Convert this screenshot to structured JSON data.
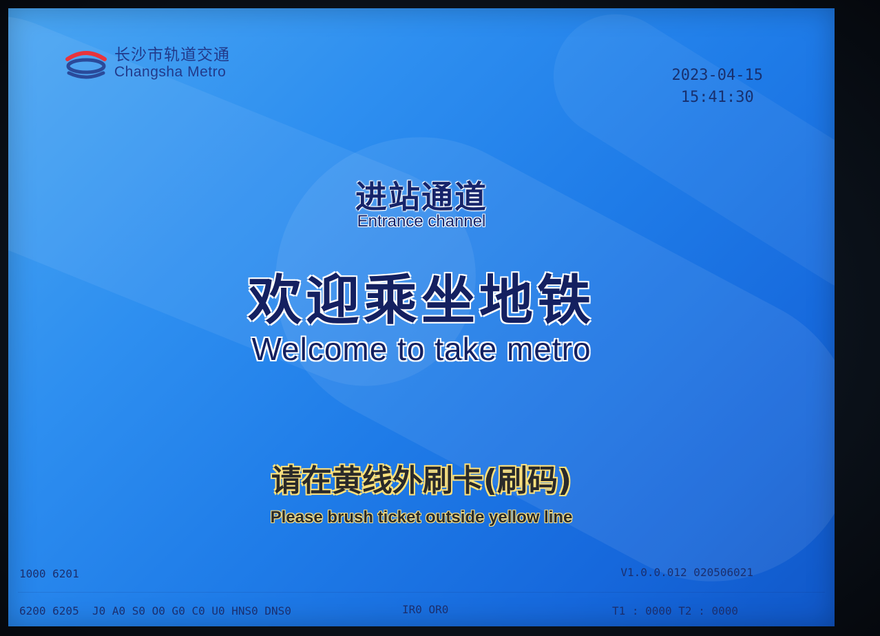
{
  "brand": {
    "name_cn": "长沙市轨道交通",
    "name_en": "Changsha Metro",
    "logo_icon": "changsha-metro-logo-icon"
  },
  "datetime": {
    "date": "2023-04-15",
    "time": "15:41:30"
  },
  "channel": {
    "title_cn": "进站通道",
    "title_en": "Entrance channel"
  },
  "welcome": {
    "title_cn": "欢迎乘坐地铁",
    "title_en": "Welcome to take metro"
  },
  "instruction": {
    "text_cn": "请在黄线外刷卡(刷码)",
    "text_en": "Please brush ticket outside yellow line"
  },
  "status_bar": {
    "device_code": "1000 6201",
    "flags": "6200 6205  J0 A0 S0 O0 G0 C0 U0 HNS0 DNS0",
    "ir_or": "IR0 OR0",
    "version": "V1.0.0.012 020506021",
    "timers": "T1 : 0000 T2 : 0000"
  },
  "colors": {
    "background_top": "#4aa6f2",
    "background_bottom": "#1057c8",
    "title_text": "#142060",
    "instruction_glow": "#ffe07a",
    "logo_red": "#e8343c",
    "logo_blue": "#2a4a9a"
  }
}
